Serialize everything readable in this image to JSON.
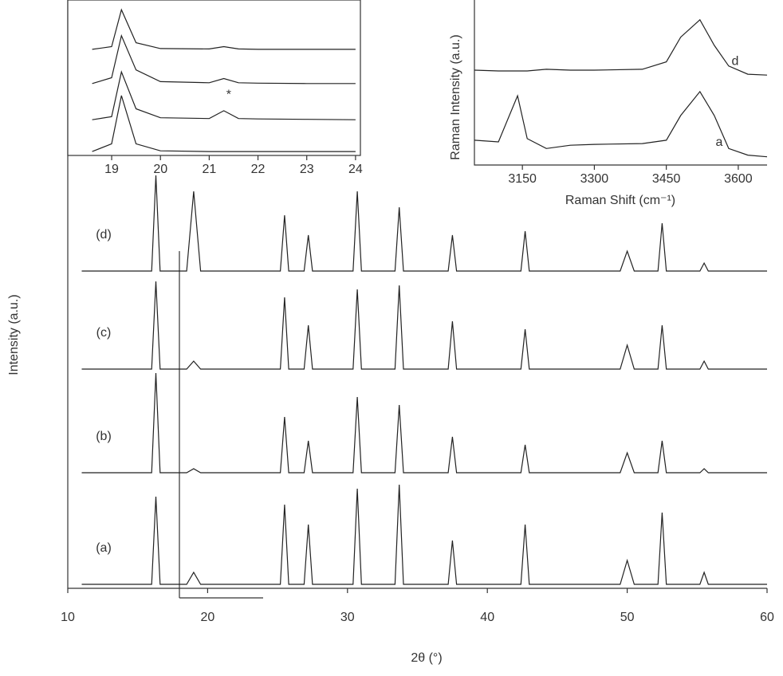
{
  "chart_data": [
    {
      "type": "line",
      "xlabel": "2θ (°)",
      "ylabel": "Intensity (a.u.)",
      "xlim": [
        10,
        60
      ],
      "ylim": [
        0,
        7.38
      ],
      "xticks": [
        10,
        20,
        30,
        40,
        50,
        60
      ],
      "x": [
        11,
        16,
        16.3,
        16.6,
        18.5,
        19,
        19.5,
        25.2,
        25.5,
        25.8,
        26.9,
        27.2,
        27.5,
        30.4,
        30.7,
        31,
        33.4,
        33.7,
        34,
        37.2,
        37.5,
        37.8,
        42.4,
        42.7,
        43,
        49.5,
        50,
        50.5,
        52.2,
        52.5,
        52.8,
        55.2,
        55.5,
        55.8,
        60
      ],
      "series": [
        {
          "name": "(a)",
          "color": "#222222",
          "values": [
            0.05,
            0.05,
            1.15,
            0.05,
            0.05,
            0.2,
            0.05,
            0.05,
            1.05,
            0.05,
            0.05,
            0.8,
            0.05,
            0.05,
            1.25,
            0.05,
            0.05,
            1.3,
            0.05,
            0.05,
            0.6,
            0.05,
            0.05,
            0.8,
            0.05,
            0.05,
            0.35,
            0.05,
            0.05,
            0.95,
            0.05,
            0.05,
            0.2,
            0.05,
            0.05
          ]
        },
        {
          "name": "(b)",
          "color": "#222222",
          "values": [
            1.45,
            1.45,
            2.7,
            1.45,
            1.45,
            1.5,
            1.45,
            1.45,
            2.15,
            1.45,
            1.45,
            1.85,
            1.45,
            1.45,
            2.4,
            1.45,
            1.45,
            2.3,
            1.45,
            1.45,
            1.9,
            1.45,
            1.45,
            1.8,
            1.45,
            1.45,
            1.7,
            1.45,
            1.45,
            1.85,
            1.45,
            1.45,
            1.5,
            1.45,
            1.45
          ]
        },
        {
          "name": "(c)",
          "color": "#222222",
          "values": [
            2.75,
            2.75,
            3.85,
            2.75,
            2.75,
            2.85,
            2.75,
            2.75,
            3.65,
            2.75,
            2.75,
            3.3,
            2.75,
            2.75,
            3.75,
            2.75,
            2.75,
            3.8,
            2.75,
            2.75,
            3.35,
            2.75,
            2.75,
            3.25,
            2.75,
            2.75,
            3.05,
            2.75,
            2.75,
            3.3,
            2.75,
            2.75,
            2.85,
            2.75,
            2.75
          ]
        },
        {
          "name": "(d)",
          "color": "#222222",
          "values": [
            3.98,
            3.98,
            5.18,
            3.98,
            3.98,
            4.98,
            3.98,
            3.98,
            4.68,
            3.98,
            3.98,
            4.43,
            3.98,
            3.98,
            4.98,
            3.98,
            3.98,
            4.78,
            3.98,
            3.98,
            4.43,
            3.98,
            3.98,
            4.48,
            3.98,
            3.98,
            4.23,
            3.98,
            3.98,
            4.58,
            3.98,
            3.98,
            4.08,
            3.98,
            3.98
          ]
        }
      ]
    },
    {
      "type": "line",
      "xlim": [
        18.1,
        24.1
      ],
      "ylim": [
        0,
        4
      ],
      "xticks": [
        19,
        20,
        21,
        22,
        23,
        24
      ],
      "x": [
        18.6,
        19,
        19.2,
        19.5,
        20,
        21,
        21.3,
        21.6,
        22,
        23,
        24
      ],
      "annotations": [
        "*"
      ],
      "series": [
        {
          "color": "#222222",
          "values": [
            0.1,
            0.3,
            1.54,
            0.3,
            0.12,
            0.1,
            0.1,
            0.1,
            0.1,
            0.1,
            0.1
          ]
        },
        {
          "color": "#222222",
          "values": [
            0.92,
            1.0,
            2.15,
            1.2,
            0.97,
            0.95,
            1.15,
            0.95,
            0.94,
            0.93,
            0.92
          ]
        },
        {
          "color": "#222222",
          "values": [
            1.85,
            2.0,
            3.08,
            2.2,
            1.9,
            1.87,
            1.98,
            1.87,
            1.86,
            1.85,
            1.85
          ]
        },
        {
          "color": "#222222",
          "values": [
            2.73,
            2.8,
            3.75,
            2.9,
            2.75,
            2.74,
            2.8,
            2.74,
            2.73,
            2.73,
            2.73
          ]
        }
      ]
    },
    {
      "type": "line",
      "xlabel": "Raman Shift (cm⁻¹)",
      "ylabel": "Raman Intensity (a.u.)",
      "xlim": [
        3050,
        3660
      ],
      "ylim": [
        0,
        2
      ],
      "xticks": [
        3150,
        3300,
        3450,
        3600
      ],
      "x": [
        3050,
        3100,
        3140,
        3160,
        3200,
        3250,
        3300,
        3400,
        3450,
        3480,
        3520,
        3550,
        3580,
        3620,
        3660
      ],
      "series": [
        {
          "name": "d",
          "color": "#222222",
          "values": [
            1.15,
            1.14,
            1.14,
            1.14,
            1.16,
            1.15,
            1.15,
            1.16,
            1.25,
            1.55,
            1.76,
            1.45,
            1.2,
            1.1,
            1.09
          ]
        },
        {
          "name": "a",
          "color": "#222222",
          "values": [
            0.3,
            0.28,
            0.84,
            0.32,
            0.2,
            0.24,
            0.25,
            0.26,
            0.3,
            0.6,
            0.89,
            0.6,
            0.2,
            0.12,
            0.1
          ]
        }
      ]
    }
  ]
}
